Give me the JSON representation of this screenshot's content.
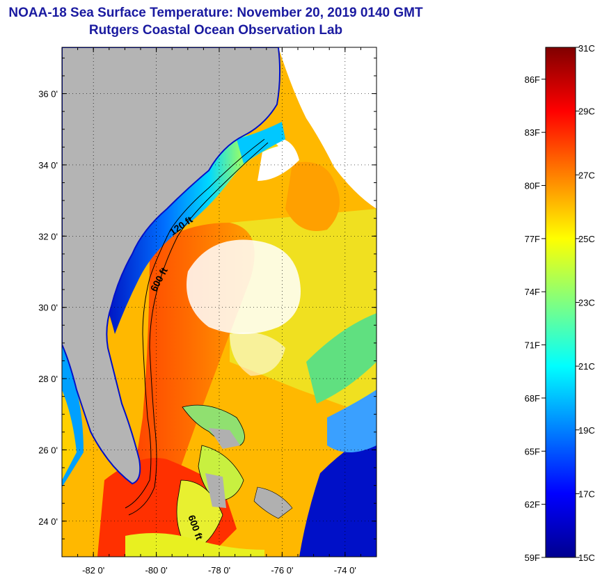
{
  "header": {
    "title_line1": "NOAA-18 Sea Surface Temperature:  November 20, 2019 0140 GMT",
    "title_line2": "Rutgers Coastal Ocean Observation Lab"
  },
  "map": {
    "lat_ticks": [
      "36 0'",
      "34 0'",
      "32 0'",
      "30 0'",
      "28 0'",
      "26 0'",
      "24 0'"
    ],
    "lat_values": [
      36,
      34,
      32,
      30,
      28,
      26,
      24
    ],
    "lon_ticks": [
      "-82 0'",
      "-80 0'",
      "-78 0'",
      "-76 0'",
      "-74 0'"
    ],
    "lon_values": [
      -82,
      -80,
      -78,
      -76,
      -74
    ],
    "lon_range": [
      -83,
      -73
    ],
    "lat_range": [
      23,
      37.3
    ],
    "contour_labels": [
      "120 ft",
      "600 ft",
      "600 ft"
    ],
    "colors": {
      "land": "#b4b4b4",
      "cloud": "#ffffff",
      "contour": "#000000"
    }
  },
  "colorbar": {
    "fahrenheit_labels": [
      "86F",
      "83F",
      "80F",
      "77F",
      "74F",
      "71F",
      "68F",
      "65F",
      "62F",
      "59F"
    ],
    "celsius_labels": [
      "31C",
      "29C",
      "27C",
      "25C",
      "23C",
      "21C",
      "19C",
      "17C",
      "15C"
    ],
    "range_c": [
      15,
      31
    ],
    "colormap": [
      "#00008f",
      "#0000ff",
      "#0080ff",
      "#00ffff",
      "#80ff80",
      "#ffff00",
      "#ff8000",
      "#ff0000",
      "#800000"
    ]
  }
}
